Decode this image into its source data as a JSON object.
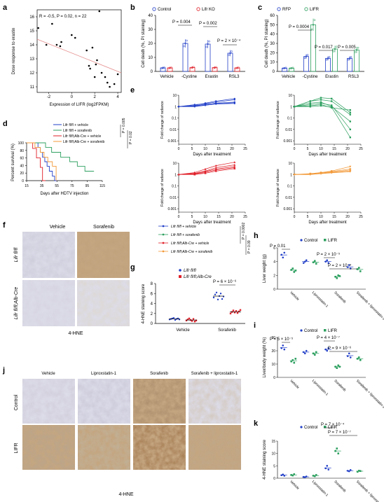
{
  "panels": {
    "a": "a",
    "b": "b",
    "c": "c",
    "d": "d",
    "e": "e",
    "f": "f",
    "g": "g",
    "h": "h",
    "i": "i",
    "j": "j",
    "k": "k"
  },
  "a": {
    "stats": "R = -0.5, P = 0.02, n = 22",
    "xlabel": "Expression of LIFR (log2FPKM)",
    "ylabel": "Dose response to erastin",
    "xticks": [
      "-2",
      "0",
      "2",
      "4"
    ],
    "yticks": [
      "11",
      "12",
      "13",
      "14",
      "15",
      "16"
    ],
    "chart_data": {
      "type": "scatter",
      "xlim": [
        -3,
        4.3
      ],
      "ylim": [
        10.6,
        16.5
      ],
      "points": [
        [
          -2.9,
          15.2
        ],
        [
          -2.2,
          14.0
        ],
        [
          -1.7,
          15.5
        ],
        [
          -1.3,
          14.0
        ],
        [
          -1.0,
          13.9
        ],
        [
          -0.9,
          14.2
        ],
        [
          0.0,
          14.7
        ],
        [
          0.3,
          14.5
        ],
        [
          1.3,
          13.6
        ],
        [
          1.5,
          12.5
        ],
        [
          1.6,
          12.3
        ],
        [
          1.8,
          13.8
        ],
        [
          2.0,
          11.7
        ],
        [
          2.1,
          12.6
        ],
        [
          2.2,
          12.9
        ],
        [
          2.4,
          16.4
        ],
        [
          2.6,
          12.0
        ],
        [
          2.9,
          11.7
        ],
        [
          3.1,
          11.3
        ],
        [
          3.3,
          11.0
        ],
        [
          3.7,
          11.2
        ],
        [
          4.0,
          11.9
        ]
      ],
      "fit": [
        [
          -3,
          14.4
        ],
        [
          4.3,
          12.0
        ]
      ]
    }
  },
  "b": {
    "legend": [
      "Control",
      "Lifr KO"
    ],
    "ylabel": "Cell death (%, PI staining)",
    "yticks": [
      "0",
      "10",
      "20",
      "30",
      "40"
    ],
    "categories": [
      "Vehicle",
      "-Cystine",
      "Erastin",
      "RSL3"
    ],
    "pvals": [
      "P = 0.004",
      "P = 0.002",
      "P = 2 × 10⁻⁴"
    ],
    "chart_data": {
      "type": "bar",
      "ylim": [
        0,
        40
      ],
      "categories": [
        "Vehicle",
        "-Cystine",
        "Erastin",
        "RSL3"
      ],
      "series": [
        {
          "name": "Control",
          "values": [
            2.5,
            20,
            19.5,
            13
          ]
        },
        {
          "name": "Lifr KO",
          "values": [
            2.5,
            2.8,
            2.7,
            2.5
          ]
        }
      ]
    }
  },
  "c": {
    "legend": [
      "RFP",
      "LIFR"
    ],
    "ylabel": "Cell death (%, PI staining)",
    "yticks": [
      "0",
      "10",
      "20",
      "30",
      "40",
      "50",
      "60"
    ],
    "categories": [
      "Vehicle",
      "-Cystine",
      "Erastin",
      "RSL3"
    ],
    "pvals": [
      "P = 0.0004",
      "P = 0.017",
      "P = 0.005"
    ],
    "chart_data": {
      "type": "bar",
      "ylim": [
        0,
        60
      ],
      "categories": [
        "Vehicle",
        "-Cystine",
        "Erastin",
        "RSL3"
      ],
      "series": [
        {
          "name": "RFP",
          "values": [
            3.5,
            16,
            14,
            14
          ]
        },
        {
          "name": "LIFR",
          "values": [
            3.5,
            50,
            24,
            23
          ]
        }
      ]
    }
  },
  "d": {
    "legend": [
      "Lifr fl/fl + vehicle",
      "Lifr fl/fl + sorafenib",
      "Lifr fl/fl;Alb-Cre + vehicle",
      "Lifr fl/fl;Alb-Cre + sorafenib"
    ],
    "pvals": [
      "P = 0.005",
      "P = 0.02"
    ],
    "ylabel": "Percent survival (%)",
    "xlabel": "Days after HDTV injection",
    "xticks": [
      "15",
      "35",
      "55",
      "75",
      "95",
      "115"
    ],
    "yticks": [
      "0",
      "20",
      "40",
      "60",
      "80",
      "100"
    ],
    "colors": [
      "#2340c8",
      "#2ea060",
      "#e0202a",
      "#f29a3a"
    ]
  },
  "e": {
    "xlabel": "Days after treatment",
    "ylabel": "Fold change of radiance",
    "xticks": [
      "0",
      "5",
      "10",
      "15",
      "20",
      "25"
    ],
    "yticks": [
      "10",
      "1",
      "0.1",
      "0.01",
      "0.001"
    ]
  },
  "f": {
    "cols": [
      "Vehicle",
      "Sorafenib"
    ],
    "rows": [
      "Lifr fl/fl",
      "Lifr fl/fl;Alb-Cre"
    ],
    "caption": "4-HNE"
  },
  "emid": {
    "legend": [
      "Lifr fl/fl + vehicle",
      "Lifr fl/fl + sorafenib",
      "Lifr fl/fl;Alb-Cre + vehicle",
      "Lifr fl/fl;Alb-Cre + sorafenib"
    ],
    "pvals": [
      "P = 0.0002",
      "P = 0.09"
    ]
  },
  "g": {
    "legend": [
      "Lifr fl/fl",
      "Lifr fl/fl;Alb-Cre"
    ],
    "ylabel": "4-HNE staining score",
    "yticks": [
      "0",
      "2",
      "4",
      "6",
      "8"
    ],
    "categories": [
      "Vehicle",
      "Sorafenib"
    ],
    "pval": "P = 6 × 10⁻⁶"
  },
  "h": {
    "legend": [
      "Control",
      "LIFR"
    ],
    "ylabel": "Liver weight (g)",
    "yticks": [
      "0",
      "2",
      "4",
      "6"
    ],
    "categories": [
      "Vehicle",
      "Liproxstatin-1",
      "Sorafenib",
      "Sorafenib + liproxstatin-1"
    ],
    "pvals": [
      "P = 0.01",
      "P = 2 × 10⁻⁵",
      "P = 2 × 10⁻⁴"
    ]
  },
  "i": {
    "legend": [
      "Control",
      "LIFR"
    ],
    "ylabel": "Liver/body weight (%)",
    "yticks": [
      "0",
      "10",
      "20",
      "30"
    ],
    "categories": [
      "Vehicle",
      "Liproxstatin-1",
      "Sorafenib",
      "Sorafenib + liproxstatin-1"
    ],
    "pvals": [
      "P = 5 × 10⁻⁵",
      "P = 4 × 10⁻⁷",
      "P = 9 × 10⁻⁶"
    ]
  },
  "j": {
    "cols": [
      "Vehicle",
      "Liproxstatin-1",
      "Sorafenib",
      "Sorafenib + liproxstatin-1"
    ],
    "rows": [
      "Control",
      "LIFR"
    ],
    "caption": "4-HNE"
  },
  "k": {
    "legend": [
      "Control",
      "LIFR"
    ],
    "ylabel": "4-HNE staining score",
    "yticks": [
      "0",
      "5",
      "10",
      "15"
    ],
    "categories": [
      "Vehicle",
      "Liproxstatin-1",
      "Sorafenib",
      "Sorafenib + liproxstatin-1"
    ],
    "pvals": [
      "P = 7 × 10⁻⁴",
      "P = 7 × 10⁻⁷"
    ]
  }
}
